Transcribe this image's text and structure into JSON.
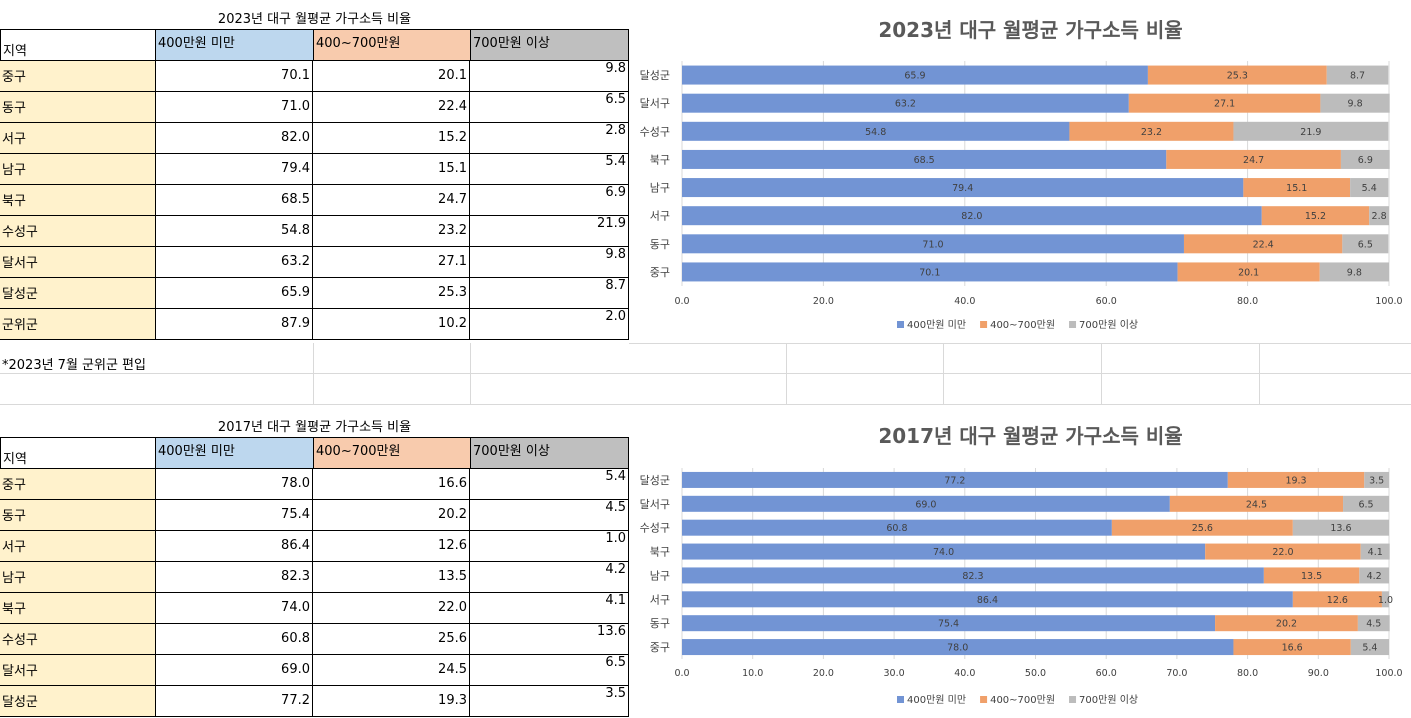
{
  "table_2023": {
    "title": "2023년 대구 월평균 가구소득 비율",
    "headers": [
      "지역",
      "400만원 미만",
      "400~700만원",
      "700만원 이상"
    ],
    "header_colors": [
      "#ffffff",
      "#bdd7ee",
      "#f8cbad",
      "#bfbfbf"
    ],
    "region_color": "#fff2cc",
    "rows": [
      {
        "region": "중구",
        "a": "70.1",
        "b": "20.1",
        "c": "9.8"
      },
      {
        "region": "동구",
        "a": "71.0",
        "b": "22.4",
        "c": "6.5"
      },
      {
        "region": "서구",
        "a": "82.0",
        "b": "15.2",
        "c": "2.8"
      },
      {
        "region": "남구",
        "a": "79.4",
        "b": "15.1",
        "c": "5.4"
      },
      {
        "region": "북구",
        "a": "68.5",
        "b": "24.7",
        "c": "6.9"
      },
      {
        "region": "수성구",
        "a": "54.8",
        "b": "23.2",
        "c": "21.9"
      },
      {
        "region": "달서구",
        "a": "63.2",
        "b": "27.1",
        "c": "9.8"
      },
      {
        "region": "달성군",
        "a": "65.9",
        "b": "25.3",
        "c": "8.7"
      },
      {
        "region": "군위군",
        "a": "87.9",
        "b": "10.2",
        "c": "2.0"
      }
    ],
    "note": "*2023년 7월 군위군 편입"
  },
  "table_2017": {
    "title": "2017년 대구 월평균 가구소득 비율",
    "headers": [
      "지역",
      "400만원 미만",
      "400~700만원",
      "700만원 이상"
    ],
    "rows": [
      {
        "region": "중구",
        "a": "78.0",
        "b": "16.6",
        "c": "5.4"
      },
      {
        "region": "동구",
        "a": "75.4",
        "b": "20.2",
        "c": "4.5"
      },
      {
        "region": "서구",
        "a": "86.4",
        "b": "12.6",
        "c": "1.0"
      },
      {
        "region": "남구",
        "a": "82.3",
        "b": "13.5",
        "c": "4.2"
      },
      {
        "region": "북구",
        "a": "74.0",
        "b": "22.0",
        "c": "4.1"
      },
      {
        "region": "수성구",
        "a": "60.8",
        "b": "25.6",
        "c": "13.6"
      },
      {
        "region": "달서구",
        "a": "69.0",
        "b": "24.5",
        "c": "6.5"
      },
      {
        "region": "달성군",
        "a": "77.2",
        "b": "19.3",
        "c": "3.5"
      }
    ]
  },
  "colors": {
    "s1": "#7294d4",
    "s2": "#f0a06a",
    "s3": "#bcbcbc",
    "text": "#404040",
    "title": "#595959"
  },
  "chart_data": [
    {
      "type": "bar",
      "orientation": "horizontal",
      "stacked": true,
      "title": "2023년 대구 월평균 가구소득 비율",
      "categories": [
        "달성군",
        "달서구",
        "수성구",
        "북구",
        "남구",
        "서구",
        "동구",
        "중구"
      ],
      "series": [
        {
          "name": "400만원 미만",
          "values": [
            65.9,
            63.2,
            54.8,
            68.5,
            79.4,
            82.0,
            71.0,
            70.1
          ]
        },
        {
          "name": "400~700만원",
          "values": [
            25.3,
            27.1,
            23.2,
            24.7,
            15.1,
            15.2,
            22.4,
            20.1
          ]
        },
        {
          "name": "700만원 이상",
          "values": [
            8.7,
            9.8,
            21.9,
            6.9,
            5.4,
            2.8,
            6.5,
            9.8
          ]
        }
      ],
      "xlim": [
        0,
        100
      ],
      "xticks": [
        "0.0",
        "20.0",
        "40.0",
        "60.0",
        "80.0",
        "100.0"
      ],
      "legend": "bottom",
      "grid": true
    },
    {
      "type": "bar",
      "orientation": "horizontal",
      "stacked": true,
      "title": "2017년 대구 월평균 가구소득 비율",
      "categories": [
        "달성군",
        "달서구",
        "수성구",
        "북구",
        "남구",
        "서구",
        "동구",
        "중구"
      ],
      "series": [
        {
          "name": "400만원 미만",
          "values": [
            77.2,
            69.0,
            60.8,
            74.0,
            82.3,
            86.4,
            75.4,
            78.0
          ]
        },
        {
          "name": "400~700만원",
          "values": [
            19.3,
            24.5,
            25.6,
            22.0,
            13.5,
            12.6,
            20.2,
            16.6
          ]
        },
        {
          "name": "700만원 이상",
          "values": [
            3.5,
            6.5,
            13.6,
            4.1,
            4.2,
            1.0,
            4.5,
            5.4
          ]
        }
      ],
      "xlim": [
        0,
        100
      ],
      "xticks": [
        "0.0",
        "10.0",
        "20.0",
        "30.0",
        "40.0",
        "50.0",
        "60.0",
        "70.0",
        "80.0",
        "90.0",
        "100.0"
      ],
      "legend": "bottom",
      "grid": true
    }
  ]
}
